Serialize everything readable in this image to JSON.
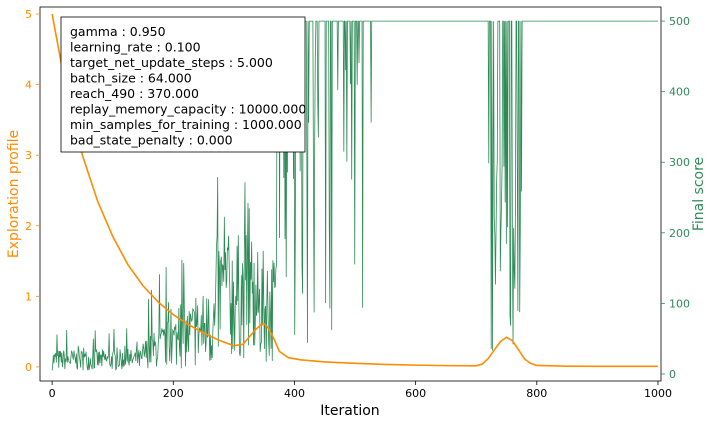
{
  "colors": {
    "exploration": "#ff8c00",
    "score": "#2e8b57",
    "frame": "#000000",
    "background": "#ffffff"
  },
  "chart_data": {
    "type": "line",
    "xlabel": "Iteration",
    "ylabel_left": "Exploration profile",
    "ylabel_right": "Final score",
    "xlim": [
      -20,
      1005
    ],
    "ylim_left": [
      -0.2,
      5.1
    ],
    "ylim_right": [
      -10,
      520
    ],
    "x_ticks": [
      0,
      200,
      400,
      600,
      800,
      1000
    ],
    "y_ticks_left": [
      0,
      1,
      2,
      3,
      4,
      5
    ],
    "y_ticks_right": [
      0,
      100,
      200,
      300,
      400,
      500
    ],
    "grid": false,
    "annotation_box": {
      "placement": "top-left",
      "lines": [
        "gamma : 0.950",
        "learning_rate : 0.100",
        "target_net_update_steps : 5.000",
        "batch_size : 64.000",
        "reach_490 : 370.000",
        "replay_memory_capacity : 10000.000",
        "min_samples_for_training : 1000.000",
        "bad_state_penalty : 0.000"
      ]
    },
    "series": [
      {
        "axis": "left",
        "x": [
          0,
          25,
          50,
          75,
          100,
          125,
          150,
          175,
          200,
          225,
          250,
          275,
          300,
          315,
          325,
          335,
          345,
          350,
          355,
          365,
          375,
          390,
          410,
          450,
          500,
          550,
          600,
          650,
          700,
          710,
          720,
          730,
          740,
          750,
          760,
          770,
          780,
          790,
          800,
          850,
          900,
          950,
          1000
        ],
        "values": [
          5.0,
          3.85,
          3.0,
          2.35,
          1.85,
          1.45,
          1.15,
          0.92,
          0.74,
          0.6,
          0.48,
          0.38,
          0.3,
          0.32,
          0.42,
          0.52,
          0.6,
          0.61,
          0.57,
          0.42,
          0.22,
          0.13,
          0.1,
          0.07,
          0.05,
          0.035,
          0.025,
          0.018,
          0.015,
          0.04,
          0.12,
          0.24,
          0.36,
          0.42,
          0.37,
          0.24,
          0.11,
          0.05,
          0.02,
          0.01,
          0.008,
          0.008,
          0.008
        ]
      },
      {
        "axis": "right",
        "generator": "noisy-episode-scores",
        "x_range": [
          0,
          1000
        ],
        "points": 1000
      }
    ]
  }
}
